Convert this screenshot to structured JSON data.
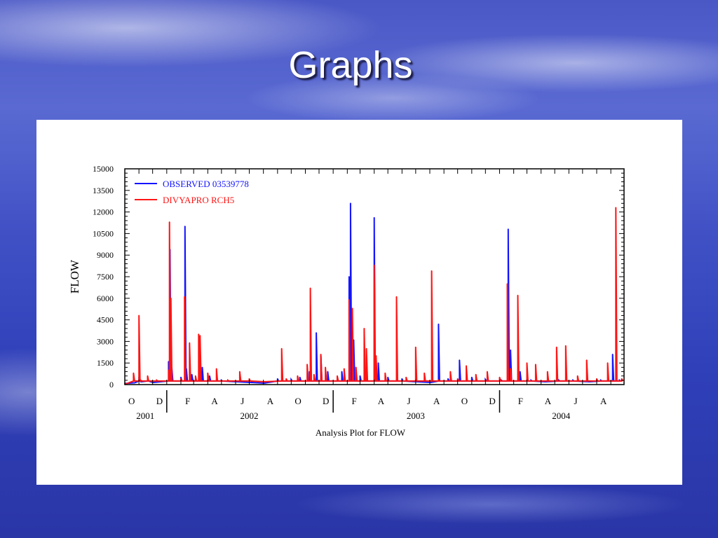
{
  "slide": {
    "title": "Graphs"
  },
  "chart_data": {
    "type": "line",
    "xlabel": "Analysis Plot for FLOW",
    "ylabel": "FLOW",
    "ylim": [
      0,
      15000
    ],
    "yticks": [
      "0",
      "1500",
      "3000",
      "4500",
      "6000",
      "7500",
      "9000",
      "10500",
      "12000",
      "13500",
      "15000"
    ],
    "month_ticks": [
      "O",
      "D",
      "F",
      "A",
      "J",
      "A",
      "O",
      "D",
      "F",
      "A",
      "J",
      "A",
      "O",
      "D",
      "F",
      "A",
      "J",
      "A"
    ],
    "year_labels": [
      "2001",
      "2002",
      "2003",
      "2004"
    ],
    "x_range": [
      "2001-10-01",
      "2004-09-30"
    ],
    "legend_position": "top-left",
    "series": [
      {
        "name": "OBSERVED 03539778",
        "color": "#1414ff",
        "points": [
          [
            "2001-10-01",
            80
          ],
          [
            "2001-10-20",
            120
          ],
          [
            "2001-11-01",
            500
          ],
          [
            "2001-11-05",
            200
          ],
          [
            "2001-11-20",
            400
          ],
          [
            "2001-12-01",
            150
          ],
          [
            "2002-01-05",
            1600
          ],
          [
            "2002-01-08",
            9400
          ],
          [
            "2002-01-12",
            1200
          ],
          [
            "2002-02-01",
            500
          ],
          [
            "2002-02-10",
            11000
          ],
          [
            "2002-02-13",
            1100
          ],
          [
            "2002-02-25",
            700
          ],
          [
            "2002-03-15",
            700
          ],
          [
            "2002-03-20",
            1200
          ],
          [
            "2002-04-05",
            600
          ],
          [
            "2002-05-01",
            300
          ],
          [
            "2002-06-01",
            200
          ],
          [
            "2002-07-01",
            150
          ],
          [
            "2002-08-01",
            100
          ],
          [
            "2002-09-01",
            400
          ],
          [
            "2002-10-01",
            350
          ],
          [
            "2002-10-20",
            500
          ],
          [
            "2002-11-10",
            900
          ],
          [
            "2002-11-25",
            3600
          ],
          [
            "2002-12-05",
            2000
          ],
          [
            "2002-12-20",
            900
          ],
          [
            "2003-01-20",
            900
          ],
          [
            "2003-02-05",
            7500
          ],
          [
            "2003-02-08",
            12600
          ],
          [
            "2003-02-15",
            3100
          ],
          [
            "2003-03-01",
            600
          ],
          [
            "2003-04-01",
            11600
          ],
          [
            "2003-04-10",
            1500
          ],
          [
            "2003-05-01",
            500
          ],
          [
            "2003-06-01",
            400
          ],
          [
            "2003-07-01",
            200
          ],
          [
            "2003-08-01",
            150
          ],
          [
            "2003-08-20",
            4200
          ],
          [
            "2003-09-10",
            400
          ],
          [
            "2003-10-05",
            1700
          ],
          [
            "2003-11-01",
            500
          ],
          [
            "2003-12-01",
            350
          ],
          [
            "2004-01-05",
            300
          ],
          [
            "2004-01-20",
            10800
          ],
          [
            "2004-01-25",
            2400
          ],
          [
            "2004-02-15",
            900
          ],
          [
            "2004-03-10",
            300
          ],
          [
            "2004-04-10",
            200
          ],
          [
            "2004-05-10",
            300
          ],
          [
            "2004-06-10",
            300
          ],
          [
            "2004-07-15",
            200
          ],
          [
            "2004-08-10",
            300
          ],
          [
            "2004-09-05",
            2100
          ],
          [
            "2004-09-20",
            300
          ]
        ]
      },
      {
        "name": "DIVYAPRO RCH5",
        "color": "#ff1414",
        "points": [
          [
            "2001-10-01",
            50
          ],
          [
            "2001-10-20",
            800
          ],
          [
            "2001-11-01",
            4800
          ],
          [
            "2001-11-05",
            300
          ],
          [
            "2001-11-20",
            600
          ],
          [
            "2001-12-10",
            300
          ],
          [
            "2002-01-05",
            1000
          ],
          [
            "2002-01-07",
            11300
          ],
          [
            "2002-01-10",
            6000
          ],
          [
            "2002-02-01",
            400
          ],
          [
            "2002-02-09",
            6100
          ],
          [
            "2002-02-20",
            2900
          ],
          [
            "2002-03-05",
            600
          ],
          [
            "2002-03-12",
            3500
          ],
          [
            "2002-03-15",
            3400
          ],
          [
            "2002-04-01",
            800
          ],
          [
            "2002-04-20",
            1100
          ],
          [
            "2002-05-15",
            300
          ],
          [
            "2002-06-10",
            900
          ],
          [
            "2002-07-01",
            400
          ],
          [
            "2002-08-01",
            200
          ],
          [
            "2002-09-10",
            2500
          ],
          [
            "2002-09-20",
            400
          ],
          [
            "2002-10-15",
            600
          ],
          [
            "2002-11-05",
            1400
          ],
          [
            "2002-11-12",
            6700
          ],
          [
            "2002-11-20",
            700
          ],
          [
            "2002-12-05",
            2100
          ],
          [
            "2002-12-15",
            1200
          ],
          [
            "2003-01-10",
            600
          ],
          [
            "2003-01-25",
            1100
          ],
          [
            "2003-02-05",
            5900
          ],
          [
            "2003-02-12",
            5300
          ],
          [
            "2003-02-20",
            1200
          ],
          [
            "2003-03-10",
            3900
          ],
          [
            "2003-03-15",
            2500
          ],
          [
            "2003-04-01",
            8300
          ],
          [
            "2003-04-05",
            2000
          ],
          [
            "2003-04-25",
            800
          ],
          [
            "2003-05-20",
            6100
          ],
          [
            "2003-06-10",
            500
          ],
          [
            "2003-07-01",
            2600
          ],
          [
            "2003-07-20",
            800
          ],
          [
            "2003-08-05",
            7900
          ],
          [
            "2003-08-20",
            300
          ],
          [
            "2003-09-15",
            900
          ],
          [
            "2003-10-01",
            400
          ],
          [
            "2003-10-20",
            1300
          ],
          [
            "2003-11-10",
            700
          ],
          [
            "2003-12-05",
            900
          ],
          [
            "2004-01-01",
            500
          ],
          [
            "2004-01-18",
            7000
          ],
          [
            "2004-01-25",
            1100
          ],
          [
            "2004-02-10",
            6200
          ],
          [
            "2004-03-01",
            1500
          ],
          [
            "2004-03-20",
            1400
          ],
          [
            "2004-04-15",
            900
          ],
          [
            "2004-05-05",
            2600
          ],
          [
            "2004-05-25",
            2700
          ],
          [
            "2004-06-20",
            600
          ],
          [
            "2004-07-10",
            1700
          ],
          [
            "2004-08-01",
            400
          ],
          [
            "2004-08-25",
            1500
          ],
          [
            "2004-09-12",
            12300
          ],
          [
            "2004-09-25",
            400
          ]
        ]
      }
    ]
  }
}
